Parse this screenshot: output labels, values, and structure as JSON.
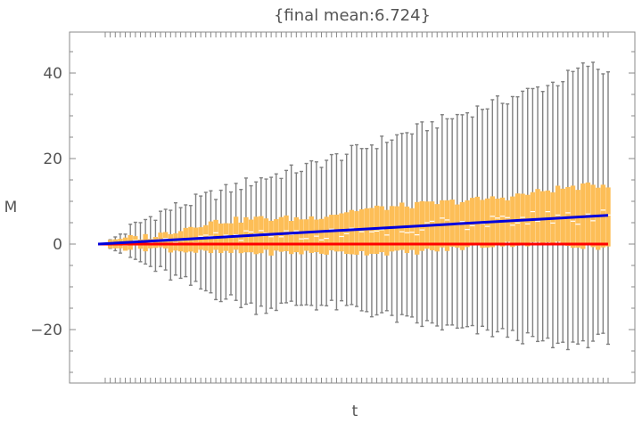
{
  "chart_data": {
    "type": "box",
    "title": "{final mean:6.724}",
    "xlabel": "t",
    "ylabel": "M",
    "ylim": [
      -32,
      49
    ],
    "yticks": [
      -20,
      0,
      20,
      40
    ],
    "ytick_labels": [
      "−20",
      "0",
      "20",
      "40"
    ],
    "x_tick_labels_shown": false,
    "n_steps": 100,
    "final_mean": 6.724,
    "series": [
      {
        "name": "",
        "kind": "box-whisker",
        "color": "#f2a93b",
        "whisker_max_sample": [
          [
            1,
            1
          ],
          [
            10,
            7
          ],
          [
            20,
            11
          ],
          [
            30,
            15
          ],
          [
            40,
            18
          ],
          [
            50,
            22
          ],
          [
            60,
            26
          ],
          [
            70,
            30
          ],
          [
            80,
            34
          ],
          [
            90,
            38
          ],
          [
            96,
            42
          ],
          [
            100,
            40
          ]
        ],
        "whisker_min_sample": [
          [
            1,
            -1
          ],
          [
            10,
            -6
          ],
          [
            20,
            -11
          ],
          [
            30,
            -15
          ],
          [
            40,
            -14
          ],
          [
            50,
            -15
          ],
          [
            60,
            -18
          ],
          [
            70,
            -20
          ],
          [
            80,
            -21
          ],
          [
            90,
            -24
          ],
          [
            100,
            -22
          ]
        ],
        "q3_sample": [
          [
            1,
            1
          ],
          [
            10,
            2
          ],
          [
            20,
            5
          ],
          [
            30,
            6
          ],
          [
            40,
            6
          ],
          [
            50,
            8
          ],
          [
            60,
            9
          ],
          [
            70,
            10
          ],
          [
            80,
            11
          ],
          [
            90,
            13
          ],
          [
            100,
            14
          ]
        ],
        "q1_sample": [
          [
            1,
            -1
          ],
          [
            10,
            -1
          ],
          [
            20,
            -2
          ],
          [
            30,
            -2
          ],
          [
            40,
            -2
          ],
          [
            50,
            -2
          ],
          [
            60,
            -2
          ],
          [
            70,
            -1
          ],
          [
            80,
            0
          ],
          [
            90,
            0
          ],
          [
            100,
            -1
          ]
        ]
      },
      {
        "name": "",
        "kind": "line",
        "color": "#0000dd",
        "points": [
          [
            0,
            0
          ],
          [
            100,
            6.724
          ]
        ]
      },
      {
        "name": "",
        "kind": "line",
        "color": "#ff0000",
        "points": [
          [
            0,
            0
          ],
          [
            100,
            0
          ]
        ]
      }
    ],
    "colors": {
      "box": "#fdbe57",
      "whisker": "#808080",
      "median": "#ffffff",
      "mean_line": "#0000dd",
      "zero_line": "#ff0000",
      "frame": "#888888",
      "text": "#555555"
    }
  }
}
